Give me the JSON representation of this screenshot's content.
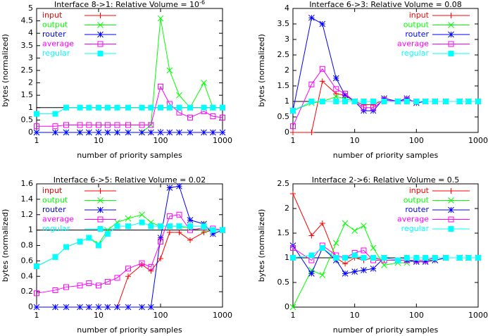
{
  "chart_data": [
    {
      "type": "line",
      "title": "Interface 8->1: Relative Volume = 10",
      "title_superscript": "-6",
      "xlabel": "number of priority samples",
      "ylabel": "bytes (normalized)",
      "xscale": "log",
      "legend": "top-left",
      "hline": 1,
      "x": [
        1,
        2,
        3,
        5,
        7,
        10,
        14,
        20,
        30,
        50,
        70,
        100,
        140,
        200,
        300,
        500,
        700,
        1000
      ],
      "xlim": [
        1,
        1000
      ],
      "xticks": [
        1,
        10,
        100,
        1000
      ],
      "ylim": [
        0,
        5
      ],
      "yticks": [
        0,
        0.5,
        1,
        1.5,
        2,
        2.5,
        3,
        3.5,
        4,
        4.5,
        5
      ],
      "series": [
        {
          "name": "input",
          "color": "#ff0000",
          "marker": "plus",
          "values": [
            0,
            0,
            0,
            0,
            0,
            0,
            0,
            0,
            0,
            0,
            0,
            0,
            0,
            0,
            0,
            0,
            0,
            0
          ]
        },
        {
          "name": "output",
          "color": "#00ff00",
          "marker": "cross",
          "values": [
            0,
            0,
            0,
            0,
            0,
            0,
            0,
            0,
            0,
            0,
            0.3,
            4.6,
            2.5,
            1.5,
            1.0,
            2.0,
            1.0,
            1.0
          ]
        },
        {
          "name": "router",
          "color": "#0000ff",
          "marker": "star",
          "values": [
            0,
            0,
            0,
            0,
            0,
            0,
            0,
            0,
            0,
            0,
            0,
            0,
            0,
            0,
            0,
            0,
            0,
            0
          ]
        },
        {
          "name": "average",
          "color": "#ff00ff",
          "marker": "square",
          "values": [
            0.25,
            0.25,
            0.3,
            0.3,
            0.3,
            0.3,
            0.3,
            0.3,
            0.3,
            0.3,
            0.3,
            1.85,
            1.15,
            0.8,
            0.6,
            0.85,
            0.65,
            0.6
          ]
        },
        {
          "name": "regular",
          "color": "#00ffff",
          "marker": "filled-square",
          "values": [
            0.75,
            0.75,
            1,
            1,
            1,
            1,
            1,
            1,
            1,
            1,
            1,
            1,
            1,
            1,
            1,
            1,
            1,
            1
          ]
        }
      ]
    },
    {
      "type": "line",
      "title": "Interface 6->3: Relative Volume = 0.08",
      "xlabel": "number of priority samples",
      "ylabel": "bytes (normalized)",
      "xscale": "log",
      "legend": "top-right",
      "hline": 1,
      "x": [
        1,
        2,
        3,
        5,
        7,
        10,
        14,
        20,
        30,
        50,
        70,
        100,
        140,
        200,
        300,
        500,
        700,
        1000
      ],
      "xlim": [
        1,
        1000
      ],
      "xticks": [
        1,
        10,
        100,
        1000
      ],
      "ylim": [
        0,
        4
      ],
      "yticks": [
        0,
        0.5,
        1,
        1.5,
        2,
        2.5,
        3,
        3.5,
        4
      ],
      "series": [
        {
          "name": "input",
          "color": "#ff0000",
          "marker": "plus",
          "values": [
            0,
            0,
            1.65,
            1.25,
            1.2,
            1.0,
            0.9,
            0.9,
            1.05,
            1.0,
            1.0,
            1.0,
            1.0,
            1.0,
            1.0,
            1.0,
            1.0,
            1.0
          ]
        },
        {
          "name": "output",
          "color": "#00ff00",
          "marker": "cross",
          "values": [
            0.7,
            0.95,
            1.0,
            1.15,
            1.1,
            1.0,
            1.0,
            1.0,
            1.0,
            1.0,
            1.0,
            1.0,
            1.0,
            1.0,
            1.0,
            1.0,
            1.0,
            1.0
          ]
        },
        {
          "name": "router",
          "color": "#0000ff",
          "marker": "star",
          "values": [
            0.7,
            3.7,
            3.5,
            1.75,
            1.2,
            1.0,
            0.7,
            0.7,
            1.1,
            1.0,
            1.1,
            0.95,
            1.0,
            1.0,
            1.0,
            1.0,
            1.0,
            1.0
          ]
        },
        {
          "name": "average",
          "color": "#ff00ff",
          "marker": "square",
          "values": [
            0.2,
            1.55,
            2.05,
            1.4,
            1.25,
            1.0,
            0.8,
            0.8,
            1.05,
            1.0,
            1.05,
            1.0,
            1.0,
            1.0,
            1.0,
            1.0,
            1.0,
            1.0
          ]
        },
        {
          "name": "regular",
          "color": "#00ffff",
          "marker": "filled-square",
          "values": [
            0.7,
            1,
            1,
            1,
            1,
            1,
            1,
            1,
            1,
            1,
            1,
            1,
            1,
            1,
            1,
            1,
            1,
            1
          ]
        }
      ]
    },
    {
      "type": "line",
      "title": "Interface 6->5: Relative Volume = 0.02",
      "xlabel": "number of priority samples",
      "ylabel": "bytes (normalized)",
      "xscale": "log",
      "legend": "top-left",
      "hline": 1,
      "x": [
        1,
        2,
        3,
        5,
        7,
        10,
        14,
        20,
        30,
        50,
        70,
        100,
        140,
        200,
        300,
        500,
        700,
        1000
      ],
      "xlim": [
        1,
        1000
      ],
      "xticks": [
        1,
        10,
        100,
        1000
      ],
      "ylim": [
        0,
        1.6
      ],
      "yticks": [
        0,
        0.2,
        0.4,
        0.6,
        0.8,
        1,
        1.2,
        1.4,
        1.6
      ],
      "series": [
        {
          "name": "input",
          "color": "#ff0000",
          "marker": "plus",
          "values": [
            0,
            0,
            0,
            0,
            0,
            0,
            0,
            0,
            0.4,
            0.55,
            0.47,
            0.63,
            0.97,
            0.97,
            0.87,
            0.97,
            1.0,
            1.0
          ]
        },
        {
          "name": "output",
          "color": "#00ff00",
          "marker": "cross",
          "values": [
            0.53,
            0.65,
            0.78,
            0.85,
            0.9,
            0.82,
            1.0,
            1.1,
            1.15,
            1.2,
            1.1,
            1.05,
            1.05,
            1.05,
            1.02,
            1.0,
            1.0,
            1.0
          ]
        },
        {
          "name": "router",
          "color": "#0000ff",
          "marker": "star",
          "values": [
            0,
            0,
            0,
            0,
            0,
            0,
            0,
            0,
            0,
            0,
            0,
            0.9,
            1.55,
            1.57,
            1.13,
            1.08,
            0.95,
            1.0
          ]
        },
        {
          "name": "average",
          "color": "#ff00ff",
          "marker": "square",
          "values": [
            0.18,
            0.22,
            0.26,
            0.28,
            0.31,
            0.28,
            0.33,
            0.38,
            0.5,
            0.57,
            0.52,
            0.85,
            1.18,
            1.2,
            1.0,
            1.03,
            1.02,
            1.0
          ]
        },
        {
          "name": "regular",
          "color": "#00ffff",
          "marker": "filled-square",
          "values": [
            0.53,
            0.65,
            0.78,
            0.85,
            0.9,
            0.8,
            0.95,
            1.05,
            1.05,
            1.1,
            1.05,
            1.05,
            1.05,
            1.05,
            1.05,
            1.05,
            1.0,
            1.0
          ]
        }
      ]
    },
    {
      "type": "line",
      "title": "Interface 2->6: Relative Volume = 0.5",
      "xlabel": "number of priority samples",
      "ylabel": "bytes (normalized)",
      "xscale": "log",
      "legend": "top-right",
      "hline": 1,
      "x": [
        1,
        2,
        3,
        5,
        7,
        10,
        14,
        20,
        30,
        50,
        70,
        100,
        140,
        200,
        300,
        500,
        700,
        1000
      ],
      "xlim": [
        1,
        1000
      ],
      "xticks": [
        1,
        10,
        100,
        1000
      ],
      "ylim": [
        0,
        2.5
      ],
      "yticks": [
        0,
        0.5,
        1,
        1.5,
        2,
        2.5
      ],
      "series": [
        {
          "name": "input",
          "color": "#ff0000",
          "marker": "plus",
          "values": [
            2.3,
            1.45,
            1.7,
            1.0,
            0.88,
            1.0,
            0.95,
            1.0,
            0.95,
            0.95,
            0.95,
            0.95,
            0.95,
            1,
            1,
            1,
            1,
            1
          ]
        },
        {
          "name": "output",
          "color": "#00ff00",
          "marker": "cross",
          "values": [
            0.0,
            0.75,
            0.65,
            1.3,
            1.7,
            1.55,
            1.65,
            1.2,
            0.85,
            0.9,
            0.9,
            0.95,
            0.95,
            0.95,
            1,
            1,
            1,
            1
          ]
        },
        {
          "name": "router",
          "color": "#0000ff",
          "marker": "star",
          "values": [
            1.25,
            0.68,
            1.2,
            0.95,
            0.68,
            0.72,
            0.75,
            0.78,
            1.0,
            0.95,
            0.95,
            0.92,
            0.92,
            0.95,
            1,
            1,
            1,
            1
          ]
        },
        {
          "name": "average",
          "color": "#ff00ff",
          "marker": "square",
          "values": [
            1.2,
            0.95,
            1.25,
            1.05,
            1.0,
            1.1,
            1.15,
            0.95,
            0.95,
            0.95,
            0.95,
            0.95,
            0.95,
            1,
            1,
            1,
            1,
            1
          ]
        },
        {
          "name": "regular",
          "color": "#00ffff",
          "marker": "filled-square",
          "values": [
            1.0,
            1.05,
            1.2,
            1.0,
            1.0,
            1.05,
            1.0,
            1.0,
            1.0,
            0.95,
            1,
            1,
            1,
            1,
            1,
            1,
            1,
            1
          ]
        }
      ]
    }
  ]
}
